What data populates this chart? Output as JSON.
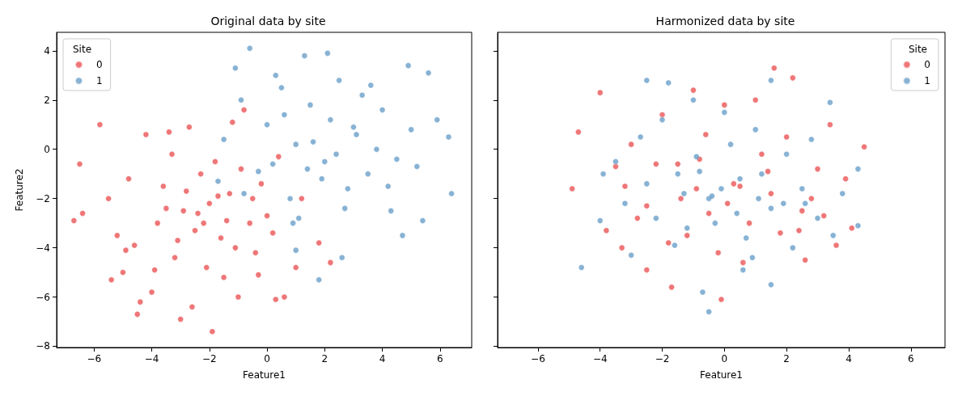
{
  "chart_data": [
    {
      "type": "scatter",
      "title": "Original data by site",
      "xlabel": "Feature1",
      "ylabel": "Feature2",
      "legend_title": "Site",
      "legend": "top left",
      "marker": "circle",
      "grid": false,
      "xlim": [
        -7.3,
        7.1
      ],
      "ylim": [
        -8.05,
        4.75
      ],
      "xticks": [
        -6,
        -4,
        -2,
        0,
        2,
        4,
        6
      ],
      "yticks": [
        -8,
        -6,
        -4,
        -2,
        0,
        2,
        4
      ],
      "series": [
        {
          "name": "0",
          "color": "#e41a1c",
          "x": [
            -6.7,
            -6.5,
            -6.4,
            -5.8,
            -5.5,
            -5.2,
            -5.0,
            -4.8,
            -4.5,
            -4.4,
            -4.2,
            -4.0,
            -3.8,
            -3.6,
            -3.4,
            -3.2,
            -3.0,
            -2.9,
            -2.7,
            -2.6,
            -2.5,
            -2.3,
            -2.1,
            -2.0,
            -1.9,
            -1.8,
            -1.6,
            -1.5,
            -1.3,
            -1.2,
            -1.0,
            -0.8,
            -0.6,
            -0.4,
            -0.2,
            0.0,
            0.3,
            0.4,
            0.6,
            1.0,
            1.2,
            1.8,
            2.2,
            -3.5,
            -2.8,
            -1.4,
            -0.9,
            -4.6,
            -3.1,
            -2.2,
            -0.5,
            -5.4,
            -3.9,
            -1.1,
            0.2,
            -2.4,
            -1.7,
            -3.3,
            -4.9,
            -0.3
          ],
          "values": [
            -2.9,
            -0.6,
            -2.6,
            1.0,
            -2.0,
            -3.5,
            -5.0,
            -1.2,
            -6.7,
            -6.2,
            0.6,
            -5.8,
            -3.0,
            -1.5,
            0.7,
            -4.4,
            -6.9,
            -2.5,
            0.9,
            -6.4,
            -3.3,
            -1.0,
            -4.8,
            -2.2,
            -7.4,
            -0.5,
            -3.6,
            -5.2,
            -1.8,
            1.1,
            -6.0,
            1.6,
            -3.0,
            -4.2,
            -1.4,
            -2.7,
            -6.1,
            -0.3,
            -6.0,
            -4.8,
            -2.0,
            -3.8,
            -4.6,
            -2.4,
            -1.7,
            -2.9,
            -0.8,
            -3.9,
            -3.7,
            -3.0,
            -2.0,
            -5.3,
            -4.9,
            -4.0,
            -3.4,
            -2.6,
            -1.9,
            -0.2,
            -4.1,
            -5.1
          ]
        },
        {
          "name": "1",
          "color": "#377eb8",
          "x": [
            -0.6,
            -1.1,
            2.1,
            1.3,
            4.9,
            5.6,
            6.3,
            6.4,
            5.4,
            4.7,
            2.6,
            1.8,
            1.0,
            -0.8,
            -1.5,
            -0.9,
            5.9,
            4.3,
            -1.7,
            0.0,
            0.5,
            1.0,
            1.5,
            2.0,
            2.5,
            3.0,
            3.5,
            4.0,
            0.2,
            0.8,
            1.4,
            2.2,
            2.8,
            3.3,
            3.8,
            4.5,
            0.3,
            1.1,
            1.9,
            2.7,
            3.6,
            5.0,
            -0.3,
            0.6,
            1.6,
            2.4,
            3.1,
            4.2,
            5.2,
            0.9
          ],
          "values": [
            4.1,
            3.3,
            3.9,
            3.8,
            3.4,
            3.1,
            0.5,
            -1.8,
            -2.9,
            -3.5,
            -4.4,
            -5.3,
            -4.1,
            -1.8,
            0.4,
            2.0,
            1.2,
            -2.5,
            -1.3,
            1.0,
            2.5,
            0.2,
            1.8,
            -0.5,
            2.8,
            0.9,
            -1.0,
            1.6,
            -0.6,
            -2.0,
            -0.8,
            1.2,
            -1.6,
            2.2,
            0.0,
            -0.4,
            3.0,
            -2.8,
            -1.2,
            -2.4,
            2.6,
            0.8,
            -0.9,
            1.4,
            0.3,
            -0.2,
            0.6,
            -1.5,
            -0.7,
            -3.0
          ]
        }
      ]
    },
    {
      "type": "scatter",
      "title": "Harmonized data by site",
      "xlabel": "Feature1",
      "legend_title": "Site",
      "legend": "top right",
      "marker": "circle",
      "grid": false,
      "tick_labels": "x",
      "xlim": [
        -7.3,
        7.1
      ],
      "ylim": [
        -8.05,
        4.75
      ],
      "xticks": [
        -6,
        -4,
        -2,
        0,
        2,
        4,
        6
      ],
      "yticks": [
        -8,
        -6,
        -4,
        -2,
        0,
        2,
        4
      ],
      "series": [
        {
          "name": "0",
          "color": "#e41a1c",
          "x": [
            -4.7,
            -4.9,
            -4.0,
            1.6,
            2.2,
            4.5,
            4.1,
            3.6,
            -0.1,
            -1.7,
            -2.5,
            -3.8,
            2.6,
            -3.0,
            -2.0,
            -1.0,
            0.0,
            1.0,
            2.0,
            3.0,
            -2.5,
            -1.5,
            -0.5,
            0.5,
            1.5,
            2.5,
            -3.2,
            -1.2,
            0.8,
            2.8,
            -0.8,
            0.3,
            1.2,
            -1.8,
            -0.2,
            0.6,
            -2.8,
            3.4,
            -3.5,
            3.9,
            -0.6,
            1.8,
            -1.4,
            0.1,
            -2.2,
            2.4,
            -0.9,
            1.4,
            -3.3,
            3.2
          ],
          "values": [
            0.7,
            -1.6,
            2.3,
            3.3,
            2.9,
            0.1,
            -3.2,
            -3.9,
            -6.1,
            -5.6,
            -4.9,
            -3.3,
            -4.5,
            0.2,
            1.4,
            2.4,
            1.8,
            2.0,
            0.5,
            -0.8,
            -2.3,
            -0.6,
            -2.6,
            -1.5,
            -1.8,
            -2.5,
            -1.5,
            -3.5,
            -3.0,
            -2.0,
            -0.4,
            -1.4,
            -0.2,
            -3.8,
            -4.2,
            -4.6,
            -2.8,
            1.0,
            -0.7,
            -1.2,
            0.6,
            -3.4,
            -2.0,
            -2.2,
            -0.6,
            -3.3,
            -1.6,
            -0.9,
            -4.0,
            -2.7
          ]
        },
        {
          "name": "1",
          "color": "#377eb8",
          "x": [
            -4.6,
            -4.0,
            -2.5,
            -1.8,
            -0.5,
            -0.7,
            1.5,
            3.5,
            4.3,
            4.3,
            3.4,
            1.5,
            -3.0,
            -2.0,
            -1.0,
            0.0,
            1.0,
            2.0,
            -1.5,
            -0.5,
            0.5,
            1.5,
            2.5,
            -2.5,
            -3.5,
            3.0,
            -1.2,
            -0.3,
            0.7,
            2.2,
            -2.2,
            -0.9,
            0.2,
            1.2,
            -1.6,
            0.9,
            2.8,
            -3.2,
            3.8,
            -0.1,
            1.9,
            -2.7,
            -0.4,
            0.4,
            1.1,
            -1.3,
            2.6,
            -3.9,
            0.6,
            -0.8
          ],
          "values": [
            -4.8,
            -2.9,
            2.8,
            2.7,
            -6.6,
            -5.8,
            -5.5,
            -3.5,
            -3.1,
            -0.8,
            1.9,
            2.8,
            -4.3,
            1.2,
            2.0,
            1.5,
            0.8,
            -0.2,
            -1.0,
            -2.0,
            -1.2,
            -2.4,
            -1.6,
            -1.4,
            -0.5,
            -2.8,
            -3.2,
            -3.0,
            -3.6,
            -4.0,
            -2.8,
            -0.3,
            0.2,
            -1.0,
            -3.9,
            -4.4,
            0.4,
            -2.2,
            -1.8,
            -1.6,
            -2.2,
            0.5,
            -1.9,
            -2.6,
            -2.0,
            -1.8,
            -2.2,
            -1.0,
            -4.9,
            -0.9
          ]
        }
      ]
    }
  ]
}
